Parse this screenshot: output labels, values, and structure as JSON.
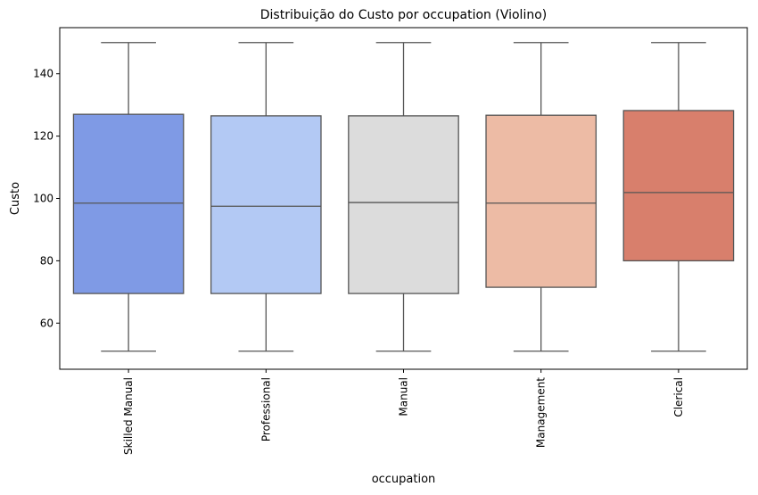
{
  "chart_data": {
    "type": "box",
    "title": "Distribuição do Custo por occupation (Violino)",
    "xlabel": "occupation",
    "ylabel": "Custo",
    "ylim": [
      45.2,
      154.8
    ],
    "yticks": [
      60,
      80,
      100,
      120,
      140
    ],
    "grid": false,
    "legend": "none",
    "categories": [
      "Skilled Manual",
      "Professional",
      "Manual",
      "Management",
      "Clerical"
    ],
    "colors": [
      "#7f9ae5",
      "#b3c9f4",
      "#dcdcdc",
      "#edbba5",
      "#d87f6c"
    ],
    "edge_color": "#555555",
    "boxes": [
      {
        "category": "Skilled Manual",
        "whisker_low": 51,
        "q1": 69.5,
        "median": 98.5,
        "q3": 127,
        "whisker_high": 150
      },
      {
        "category": "Professional",
        "whisker_low": 51,
        "q1": 69.5,
        "median": 97.5,
        "q3": 126.5,
        "whisker_high": 150
      },
      {
        "category": "Manual",
        "whisker_low": 51,
        "q1": 69.5,
        "median": 98.7,
        "q3": 126.5,
        "whisker_high": 150
      },
      {
        "category": "Management",
        "whisker_low": 51,
        "q1": 71.5,
        "median": 98.5,
        "q3": 126.7,
        "whisker_high": 150
      },
      {
        "category": "Clerical",
        "whisker_low": 51,
        "q1": 80,
        "median": 101.9,
        "q3": 128.2,
        "whisker_high": 150
      }
    ]
  }
}
